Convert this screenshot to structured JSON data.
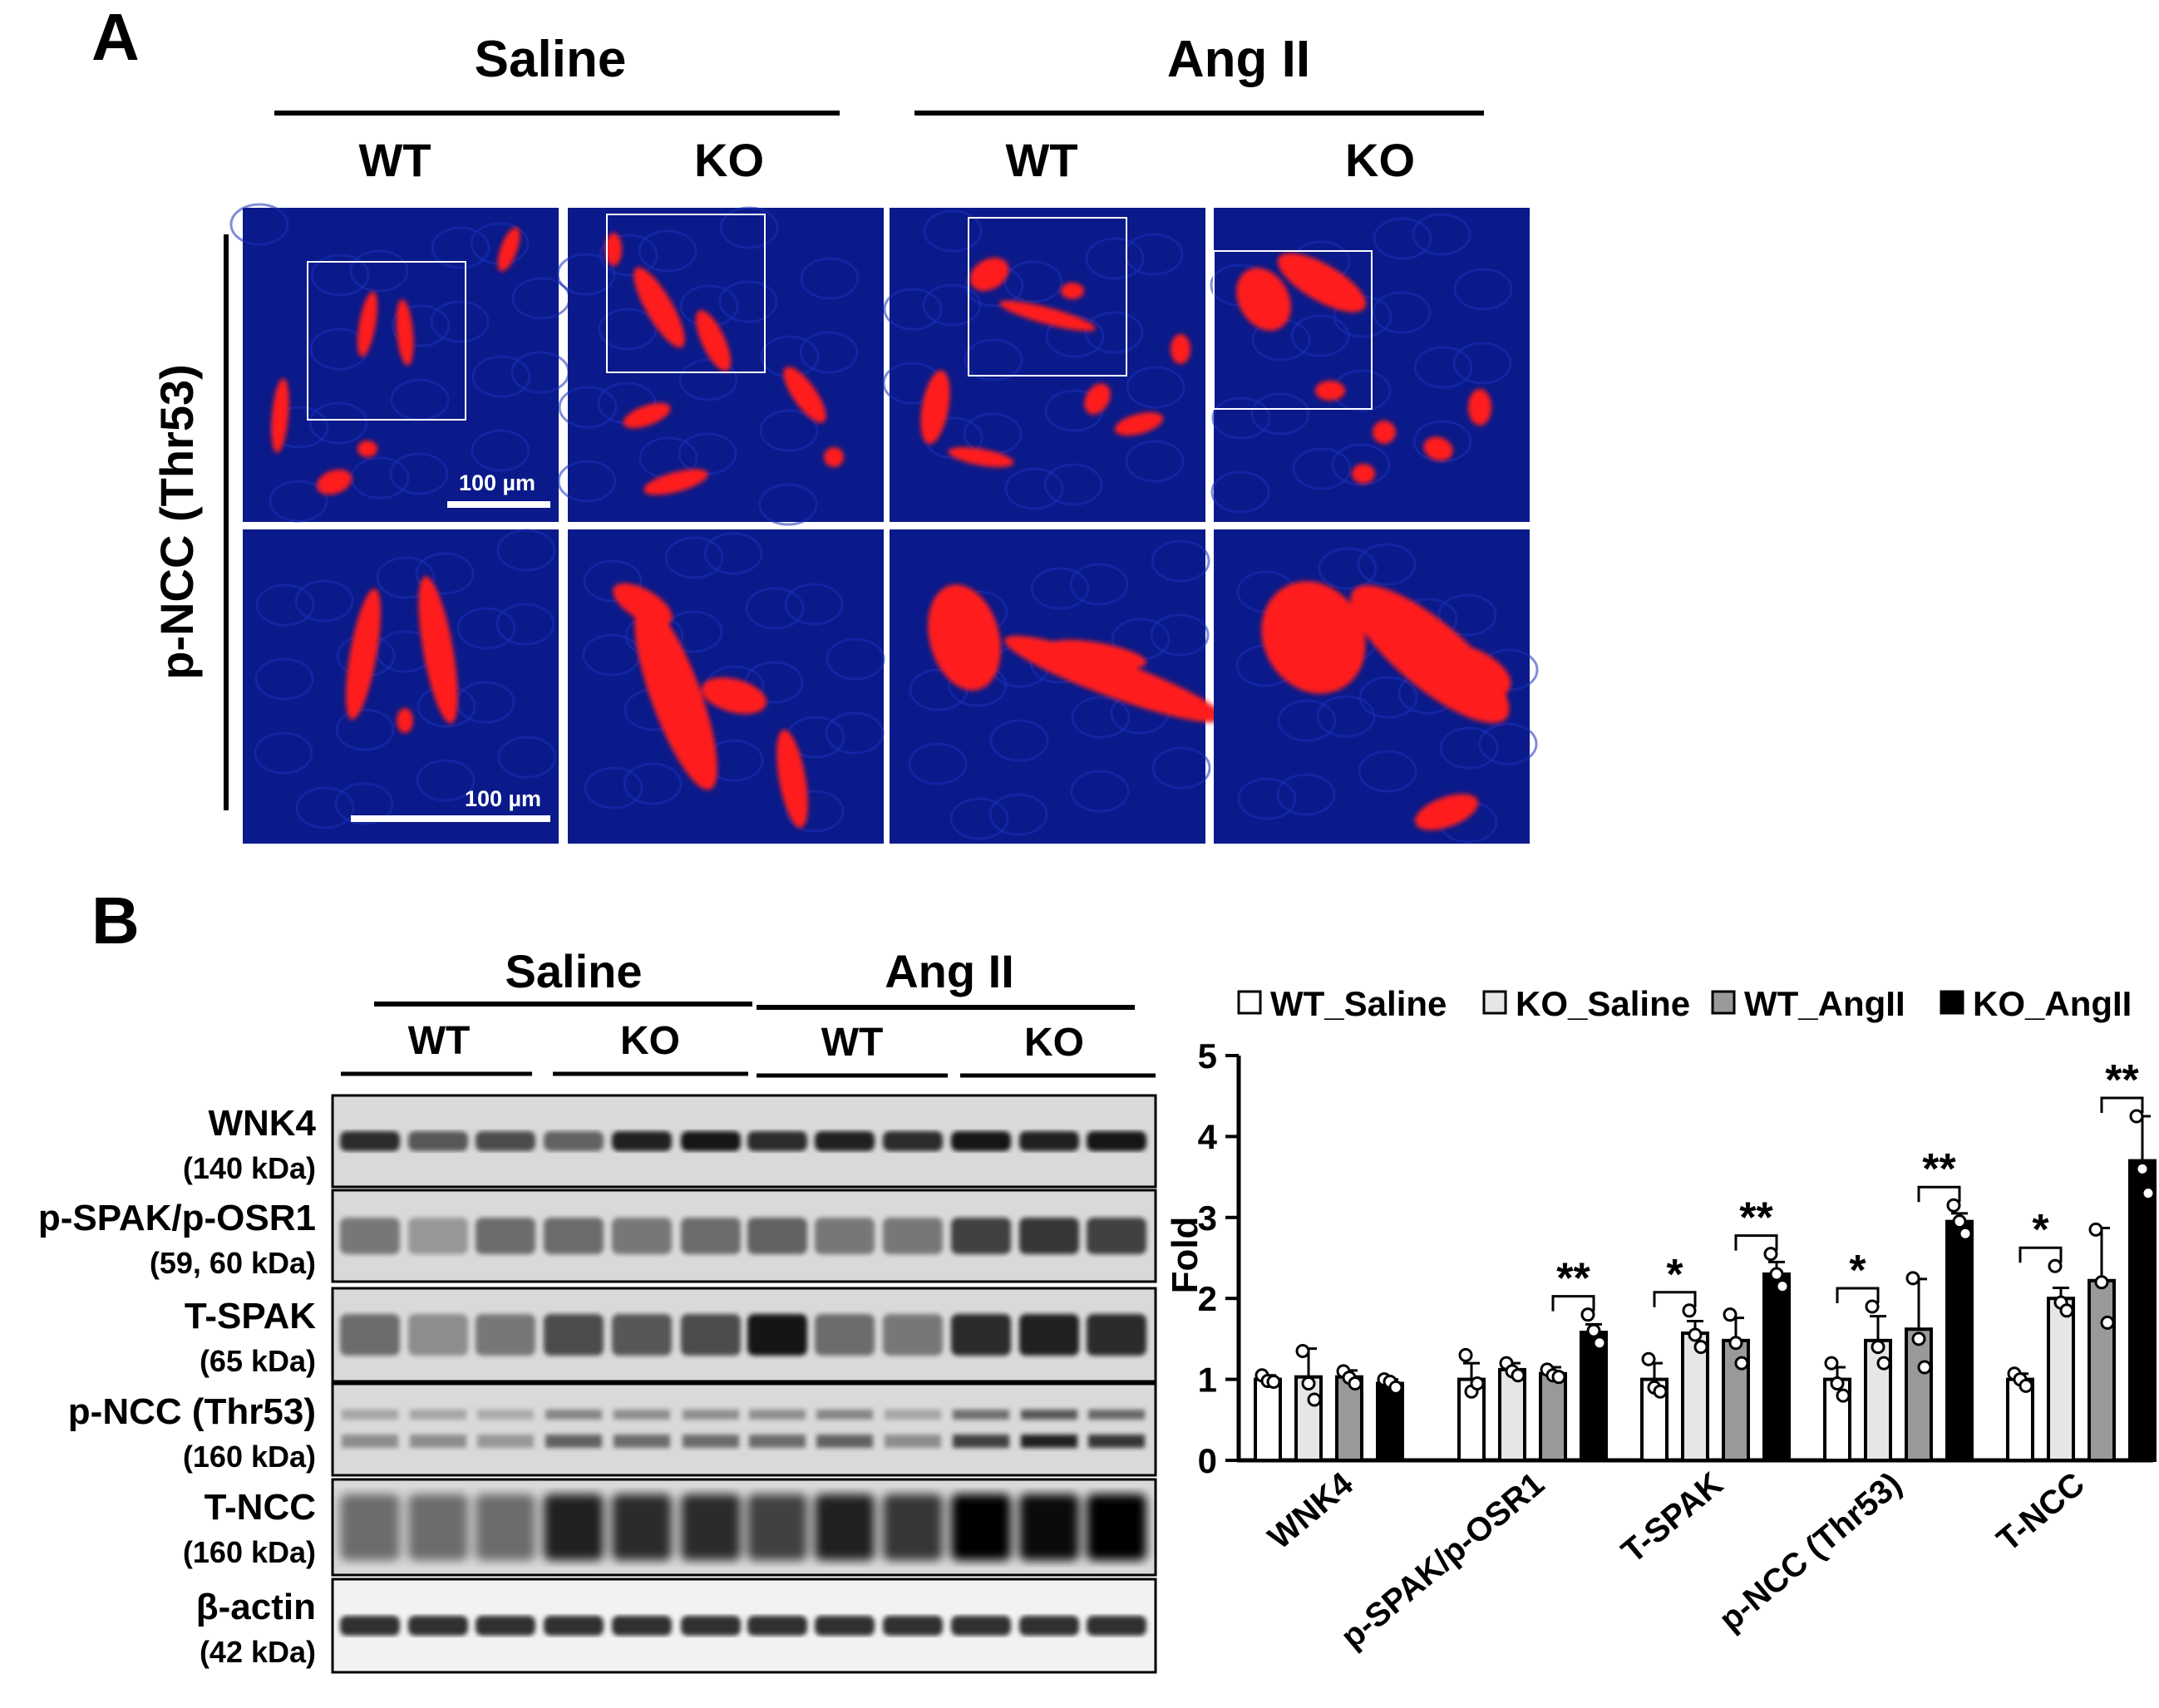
{
  "panel_a": {
    "letter": "A",
    "groups": [
      {
        "label": "Saline",
        "genotypes": [
          "WT",
          "KO"
        ]
      },
      {
        "label": "Ang II",
        "genotypes": [
          "WT",
          "KO"
        ]
      }
    ],
    "row_label": "p-NCC (Thr53)",
    "scale_bar_label": "100 µm",
    "colors": {
      "nuclei": "#0a1a8a",
      "stain": "#ff1a1a"
    }
  },
  "panel_b": {
    "letter": "B",
    "blot_groups": [
      {
        "label": "Saline",
        "genotypes": [
          "WT",
          "KO"
        ]
      },
      {
        "label": "Ang II",
        "genotypes": [
          "WT",
          "KO"
        ]
      }
    ],
    "blots": [
      {
        "name": "WNK4",
        "size": "(140 kDa)"
      },
      {
        "name": "p-SPAK/p-OSR1",
        "size": "(59, 60 kDa)"
      },
      {
        "name": "T-SPAK",
        "size": "(65 kDa)"
      },
      {
        "name": "p-NCC (Thr53)",
        "size": "(160 kDa)"
      },
      {
        "name": "T-NCC",
        "size": "(160 kDa)"
      },
      {
        "name": "β-actin",
        "size": "(42 kDa)"
      }
    ]
  },
  "chart_data": {
    "type": "bar",
    "ylabel": "Fold",
    "ylim": [
      0,
      5
    ],
    "yticks": [
      0,
      1,
      2,
      3,
      4,
      5
    ],
    "categories": [
      "WNK4",
      "p-SPAK/p-OSR1",
      "T-SPAK",
      "p-NCC  (Thr53)",
      "T-NCC"
    ],
    "legend_position": "top",
    "series": [
      {
        "name": "WT_Saline",
        "color": "#ffffff",
        "values": [
          1.0,
          1.0,
          1.0,
          1.0,
          1.0
        ],
        "errors": [
          0.05,
          0.2,
          0.2,
          0.15,
          0.07
        ],
        "points": [
          [
            1.05,
            0.98,
            0.97
          ],
          [
            1.3,
            0.85,
            0.95
          ],
          [
            1.25,
            0.9,
            0.85
          ],
          [
            1.2,
            0.95,
            0.8
          ],
          [
            1.07,
            1.0,
            0.92
          ]
        ]
      },
      {
        "name": "KO_Saline",
        "color": "#e6e6e6",
        "values": [
          1.03,
          1.12,
          1.57,
          1.48,
          2.0
        ],
        "errors": [
          0.35,
          0.08,
          0.15,
          0.3,
          0.13
        ],
        "points": [
          [
            1.35,
            0.95,
            0.75
          ],
          [
            1.2,
            1.1,
            1.05
          ],
          [
            1.85,
            1.55,
            1.4
          ],
          [
            1.9,
            1.4,
            1.2
          ],
          [
            2.4,
            1.95,
            1.85
          ]
        ]
      },
      {
        "name": "WT_AngII",
        "color": "#999999",
        "values": [
          1.03,
          1.07,
          1.48,
          1.62,
          2.22
        ],
        "errors": [
          0.08,
          0.08,
          0.28,
          0.62,
          0.65
        ],
        "points": [
          [
            1.1,
            1.02,
            0.95
          ],
          [
            1.12,
            1.05,
            1.03
          ],
          [
            1.8,
            1.45,
            1.2
          ],
          [
            2.25,
            1.5,
            1.15
          ],
          [
            2.85,
            2.2,
            1.7
          ]
        ]
      },
      {
        "name": "KO_AngII",
        "color": "#000000",
        "values": [
          0.95,
          1.58,
          2.3,
          2.95,
          3.7
        ],
        "errors": [
          0.05,
          0.1,
          0.15,
          0.1,
          0.55
        ],
        "points": [
          [
            1.0,
            0.97,
            0.9
          ],
          [
            1.8,
            1.6,
            1.45
          ],
          [
            2.55,
            2.3,
            2.15
          ],
          [
            3.15,
            2.95,
            2.8
          ],
          [
            4.25,
            3.6,
            3.3
          ]
        ]
      }
    ],
    "significance": [
      {
        "category": 1,
        "from": 2,
        "to": 3,
        "label": "**"
      },
      {
        "category": 2,
        "from": 0,
        "to": 1,
        "label": "*"
      },
      {
        "category": 2,
        "from": 2,
        "to": 3,
        "label": "**"
      },
      {
        "category": 3,
        "from": 0,
        "to": 1,
        "label": "*"
      },
      {
        "category": 3,
        "from": 2,
        "to": 3,
        "label": "**"
      },
      {
        "category": 4,
        "from": 0,
        "to": 1,
        "label": "*"
      },
      {
        "category": 4,
        "from": 2,
        "to": 3,
        "label": "**"
      }
    ]
  }
}
